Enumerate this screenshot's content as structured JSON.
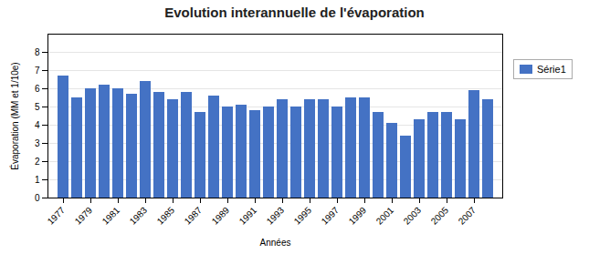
{
  "chart_data": {
    "type": "bar",
    "title": "Evolution interannuelle de l'évaporation",
    "xlabel": "Années",
    "ylabel": "Évaporation (MM et 1/10e)",
    "categories": [
      "1977",
      null,
      "1979",
      null,
      "1981",
      null,
      "1983",
      null,
      "1985",
      null,
      "1987",
      null,
      "1989",
      null,
      "1991",
      null,
      "1993",
      null,
      "1995",
      null,
      "1997",
      null,
      "1999",
      null,
      "2001",
      null,
      "2003",
      null,
      "2005",
      null,
      "2007",
      null
    ],
    "series": [
      {
        "name": "Série1",
        "color": "#4472C4",
        "values": [
          6.7,
          5.5,
          6.0,
          6.2,
          6.0,
          5.7,
          6.4,
          5.8,
          5.4,
          5.8,
          4.7,
          5.6,
          5.0,
          5.1,
          4.8,
          5.0,
          5.4,
          5.0,
          5.4,
          5.4,
          5.0,
          5.5,
          5.5,
          4.7,
          4.1,
          3.4,
          4.3,
          4.7,
          4.7,
          4.3,
          5.9,
          5.4
        ]
      }
    ],
    "ylim": [
      0,
      9
    ],
    "yticks": [
      0,
      1,
      2,
      3,
      4,
      5,
      6,
      7,
      8
    ],
    "grid": true,
    "legend": "upper right"
  }
}
